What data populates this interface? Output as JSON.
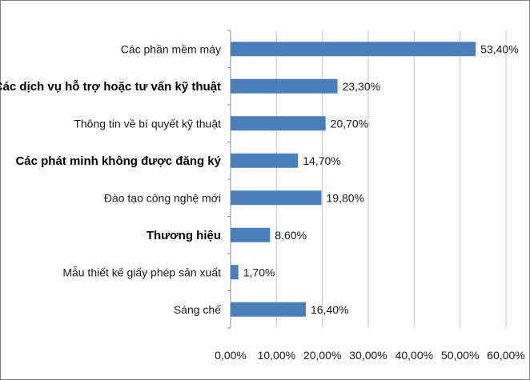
{
  "chart_data": {
    "type": "bar",
    "orientation": "horizontal",
    "categories": [
      "Các phần mềm máy",
      "Các dịch vụ hỗ trợ hoặc tư vấn kỹ thuật",
      "Thông tin về bí quyết kỹ thuật",
      "Các phát minh không được đăng ký",
      "Đào tạo công nghệ mới",
      "Thương hiệu",
      "Mẫu thiết kế giấy phép sản xuất",
      "Sáng chế"
    ],
    "values": [
      53.4,
      23.3,
      20.7,
      14.7,
      19.8,
      8.6,
      1.7,
      16.4
    ],
    "data_labels": [
      "53,40%",
      "23,30%",
      "20,70%",
      "14,70%",
      "19,80%",
      "8,60%",
      "1,70%",
      "16,40%"
    ],
    "bold_categories": [
      false,
      true,
      false,
      true,
      false,
      true,
      false,
      false
    ],
    "xlim": [
      0,
      60
    ],
    "x_ticks": [
      0,
      10,
      20,
      30,
      40,
      50,
      60
    ],
    "x_tick_labels": [
      "0,00%",
      "10,00%",
      "20,00%",
      "30,00%",
      "40,00%",
      "50,00%",
      "60,00%"
    ],
    "grid": true,
    "bar_color": "#4a7ebb",
    "grid_color": "#c6c6c6",
    "title": "",
    "xlabel": "",
    "ylabel": ""
  }
}
